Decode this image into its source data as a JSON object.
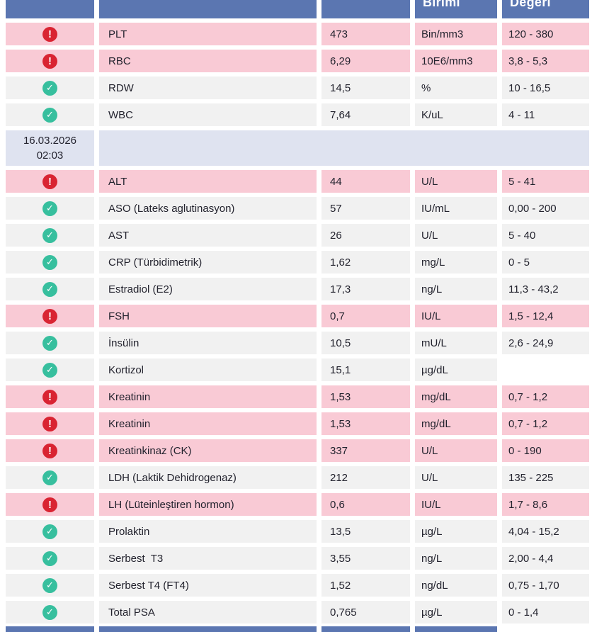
{
  "header": {
    "status_label": "",
    "name_label": "",
    "value_label": "",
    "unit_label": "Birimi",
    "range_label": "Değeri"
  },
  "icons": {
    "alert": "!",
    "check": "✓"
  },
  "colors": {
    "navy": "#5b76b1",
    "pink": "#f9cad5",
    "gray": "#f1f1f1",
    "periwinkle": "#dfe3f0",
    "red": "#d92432",
    "green": "#37bf9e"
  },
  "date_separator": {
    "date": "16.03.2026",
    "time": "02:03"
  },
  "rows_group1": [
    {
      "status": "high",
      "name": "PLT",
      "value": "473",
      "unit": "Bin/mm3",
      "range": "120 - 380"
    },
    {
      "status": "high",
      "name": "RBC",
      "value": "6,29",
      "unit": "10E6/mm3",
      "range": "3,8 - 5,3"
    },
    {
      "status": "normal",
      "name": "RDW",
      "value": "14,5",
      "unit": "%",
      "range": "10 - 16,5"
    },
    {
      "status": "normal",
      "name": "WBC",
      "value": "7,64",
      "unit": "K/uL",
      "range": "4 - 11"
    }
  ],
  "rows_group2": [
    {
      "status": "high",
      "name": "ALT",
      "value": "44",
      "unit": "U/L",
      "range": "5 - 41"
    },
    {
      "status": "normal",
      "name": "ASO (Lateks aglutinasyon)",
      "value": "57",
      "unit": "IU/mL",
      "range": "0,00 - 200"
    },
    {
      "status": "normal",
      "name": "AST",
      "value": "26",
      "unit": "U/L",
      "range": "5 - 40"
    },
    {
      "status": "normal",
      "name": "CRP (Türbidimetrik)",
      "value": "1,62",
      "unit": "mg/L",
      "range": "0 - 5"
    },
    {
      "status": "normal",
      "name": "Estradiol (E2)",
      "value": "17,3",
      "unit": "ng/L",
      "range": "11,3 - 43,2"
    },
    {
      "status": "high",
      "name": "FSH",
      "value": "0,7",
      "unit": "IU/L",
      "range": "1,5 - 12,4"
    },
    {
      "status": "normal",
      "name": "İnsülin",
      "value": "10,5",
      "unit": "mU/L",
      "range": "2,6 - 24,9"
    },
    {
      "status": "normal",
      "name": "Kortizol",
      "value": "15,1",
      "unit": "µg/dL",
      "range": ""
    },
    {
      "status": "high",
      "name": "Kreatinin",
      "value": "1,53",
      "unit": "mg/dL",
      "range": "0,7 - 1,2"
    },
    {
      "status": "high",
      "name": "Kreatinin",
      "value": "1,53",
      "unit": "mg/dL",
      "range": "0,7 - 1,2"
    },
    {
      "status": "high",
      "name": "Kreatinkinaz (CK)",
      "value": "337",
      "unit": "U/L",
      "range": "0 - 190"
    },
    {
      "status": "normal",
      "name": "LDH (Laktik Dehidrogenaz)",
      "value": "212",
      "unit": "U/L",
      "range": "135 - 225"
    },
    {
      "status": "high",
      "name": "LH (Lüteinleştiren hormon)",
      "value": "0,6",
      "unit": "IU/L",
      "range": "1,7 - 8,6"
    },
    {
      "status": "normal",
      "name": "Prolaktin",
      "value": "13,5",
      "unit": "µg/L",
      "range": "4,04 - 15,2"
    },
    {
      "status": "normal",
      "name": "Serbest  T3",
      "value": "3,55",
      "unit": "ng/L",
      "range": "2,00 - 4,4"
    },
    {
      "status": "normal",
      "name": "Serbest T4 (FT4)",
      "value": "1,52",
      "unit": "ng/dL",
      "range": "0,75 - 1,70"
    },
    {
      "status": "normal",
      "name": "Total PSA",
      "value": "0,765",
      "unit": "µg/L",
      "range": "0 - 1,4"
    }
  ]
}
